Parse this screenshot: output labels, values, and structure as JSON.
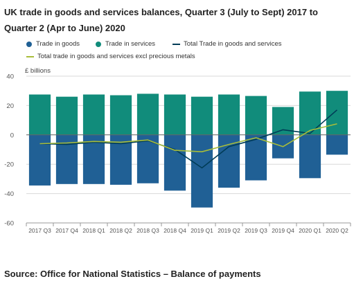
{
  "title": "UK trade in goods and services balances, Quarter 3 (July to Sept) 2017 to Quarter 2 (Apr to June) 2020",
  "source": "Source: Office for National Statistics – Balance of payments",
  "chart_data": {
    "type": "bar",
    "ylabel": "£ billions",
    "ylim": [
      -60,
      40
    ],
    "yticks": [
      40,
      20,
      0,
      -20,
      -40,
      -60
    ],
    "grid": true,
    "legend_placement": "top",
    "categories": [
      "2017 Q3",
      "2017 Q4",
      "2018 Q1",
      "2018 Q2",
      "2018 Q3",
      "2018 Q4",
      "2019 Q1",
      "2019 Q2",
      "2019 Q3",
      "2019 Q4",
      "2020 Q1",
      "2020 Q2"
    ],
    "series": [
      {
        "name": "Trade in goods",
        "kind": "bar",
        "color": "#206095",
        "values": [
          -34.5,
          -33.5,
          -33.5,
          -34,
          -33,
          -38,
          -49.5,
          -36,
          -31,
          -16,
          -29.5,
          -13.5
        ]
      },
      {
        "name": "Trade in services",
        "kind": "bar",
        "color": "#118c7b",
        "values": [
          27.5,
          26,
          27.5,
          27,
          28,
          27.5,
          26,
          27.5,
          26.5,
          19,
          29.5,
          30
        ]
      },
      {
        "name": "Total Trade in goods and services",
        "kind": "line",
        "color": "#003c57",
        "values": [
          -6,
          -6.5,
          -5,
          -6,
          -4,
          -10,
          -22.5,
          -8,
          -3,
          3.5,
          1,
          17
        ]
      },
      {
        "name": "Total trade in goods and services excl precious metals",
        "kind": "line",
        "color": "#a8bd3a",
        "values": [
          -6,
          -5.5,
          -4.5,
          -5,
          -3.5,
          -10.5,
          -11.5,
          -6.5,
          -2,
          -8,
          3,
          7.5
        ]
      }
    ]
  }
}
